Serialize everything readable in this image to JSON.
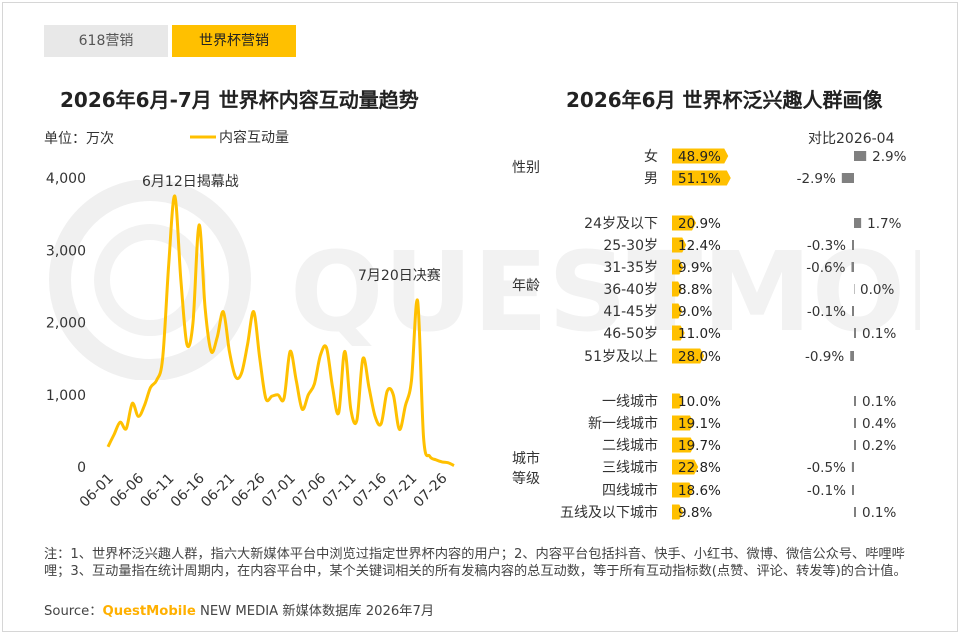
{
  "tabs": [
    {
      "label": "618营销"
    },
    {
      "label": "世界杯营销"
    }
  ],
  "left_title": "2026年6月-7月 世界杯内容互动量趋势",
  "right_title": "2026年6月 世界杯泛兴趣人群画像",
  "unit_label": "单位：万次",
  "compare_label": "对比2026-04",
  "note": "注：1、世界杯泛兴趣人群，指六大新媒体平台中浏览过指定世界杯内容的用户；2、内容平台包括抖音、快手、小红书、微博、微信公众号、哔哩哔哩；3、互动量指在统计周期内，在内容平台中，某个关键词相关的所有发稿内容的总互动数，等于所有互动指标数(点赞、评论、转发等)的合计值。",
  "source": {
    "prefix": "Source：",
    "brand": "QuestMobile",
    "suffix": " NEW MEDIA 新媒体数据库 2026年7月"
  },
  "watermark": "QUESTMOBILE",
  "colors": {
    "accent": "#ffc000",
    "line": "#ffc000",
    "compare": "#808080"
  },
  "chart_data": [
    {
      "type": "line",
      "title": "2026年6月-7月 世界杯内容互动量趋势",
      "ylabel": "单位：万次",
      "ylim": [
        0,
        4000
      ],
      "yticks": [
        "4,000",
        "3,000",
        "2,000",
        "1,000",
        "0"
      ],
      "xticks": [
        "06-01",
        "06-06",
        "06-11",
        "06-16",
        "06-21",
        "06-26",
        "07-01",
        "07-06",
        "07-11",
        "07-16",
        "07-21",
        "07-26"
      ],
      "series": [
        {
          "name": "内容互动量",
          "values": [
            280,
            450,
            620,
            530,
            880,
            700,
            850,
            1100,
            1200,
            1500,
            2800,
            3750,
            2600,
            1700,
            2000,
            3350,
            2200,
            1600,
            1800,
            2150,
            1600,
            1250,
            1300,
            1700,
            2150,
            1500,
            950,
            980,
            1000,
            950,
            1600,
            1200,
            800,
            1000,
            1150,
            1550,
            1650,
            1100,
            750,
            1600,
            800,
            650,
            1500,
            1100,
            700,
            600,
            1050,
            1000,
            520,
            850,
            1200,
            2300,
            400,
            150,
            100,
            70,
            60,
            20
          ]
        }
      ],
      "annotations": [
        {
          "text": "6月12日揭幕战"
        },
        {
          "text": "7月20日决赛"
        }
      ]
    },
    {
      "type": "bar",
      "title": "2026年6月 世界杯泛兴趣人群画像",
      "compare_title": "对比2026-04",
      "groups": [
        {
          "name": "性别",
          "items": [
            {
              "label": "女",
              "value": 48.9,
              "value_text": "48.9%",
              "delta": 2.9,
              "delta_text": "2.9%"
            },
            {
              "label": "男",
              "value": 51.1,
              "value_text": "51.1%",
              "delta": -2.9,
              "delta_text": "-2.9%"
            }
          ]
        },
        {
          "name": "年龄",
          "items": [
            {
              "label": "24岁及以下",
              "value": 20.9,
              "value_text": "20.9%",
              "delta": 1.7,
              "delta_text": "1.7%"
            },
            {
              "label": "25-30岁",
              "value": 12.4,
              "value_text": "12.4%",
              "delta": -0.3,
              "delta_text": "-0.3%"
            },
            {
              "label": "31-35岁",
              "value": 9.9,
              "value_text": "9.9%",
              "delta": -0.6,
              "delta_text": "-0.6%"
            },
            {
              "label": "36-40岁",
              "value": 8.8,
              "value_text": "8.8%",
              "delta": 0.0,
              "delta_text": "0.0%"
            },
            {
              "label": "41-45岁",
              "value": 9.0,
              "value_text": "9.0%",
              "delta": -0.1,
              "delta_text": "-0.1%"
            },
            {
              "label": "46-50岁",
              "value": 11.0,
              "value_text": "11.0%",
              "delta": 0.1,
              "delta_text": "0.1%"
            },
            {
              "label": "51岁及以上",
              "value": 28.0,
              "value_text": "28.0%",
              "delta": -0.9,
              "delta_text": "-0.9%"
            }
          ]
        },
        {
          "name": "城市等级",
          "items": [
            {
              "label": "一线城市",
              "value": 10.0,
              "value_text": "10.0%",
              "delta": 0.1,
              "delta_text": "0.1%"
            },
            {
              "label": "新一线城市",
              "value": 19.1,
              "value_text": "19.1%",
              "delta": 0.4,
              "delta_text": "0.4%"
            },
            {
              "label": "二线城市",
              "value": 19.7,
              "value_text": "19.7%",
              "delta": 0.2,
              "delta_text": "0.2%"
            },
            {
              "label": "三线城市",
              "value": 22.8,
              "value_text": "22.8%",
              "delta": -0.5,
              "delta_text": "-0.5%"
            },
            {
              "label": "四线城市",
              "value": 18.6,
              "value_text": "18.6%",
              "delta": -0.1,
              "delta_text": "-0.1%"
            },
            {
              "label": "五线及以下城市",
              "value": 9.8,
              "value_text": "9.8%",
              "delta": 0.1,
              "delta_text": "0.1%"
            }
          ]
        }
      ]
    }
  ]
}
